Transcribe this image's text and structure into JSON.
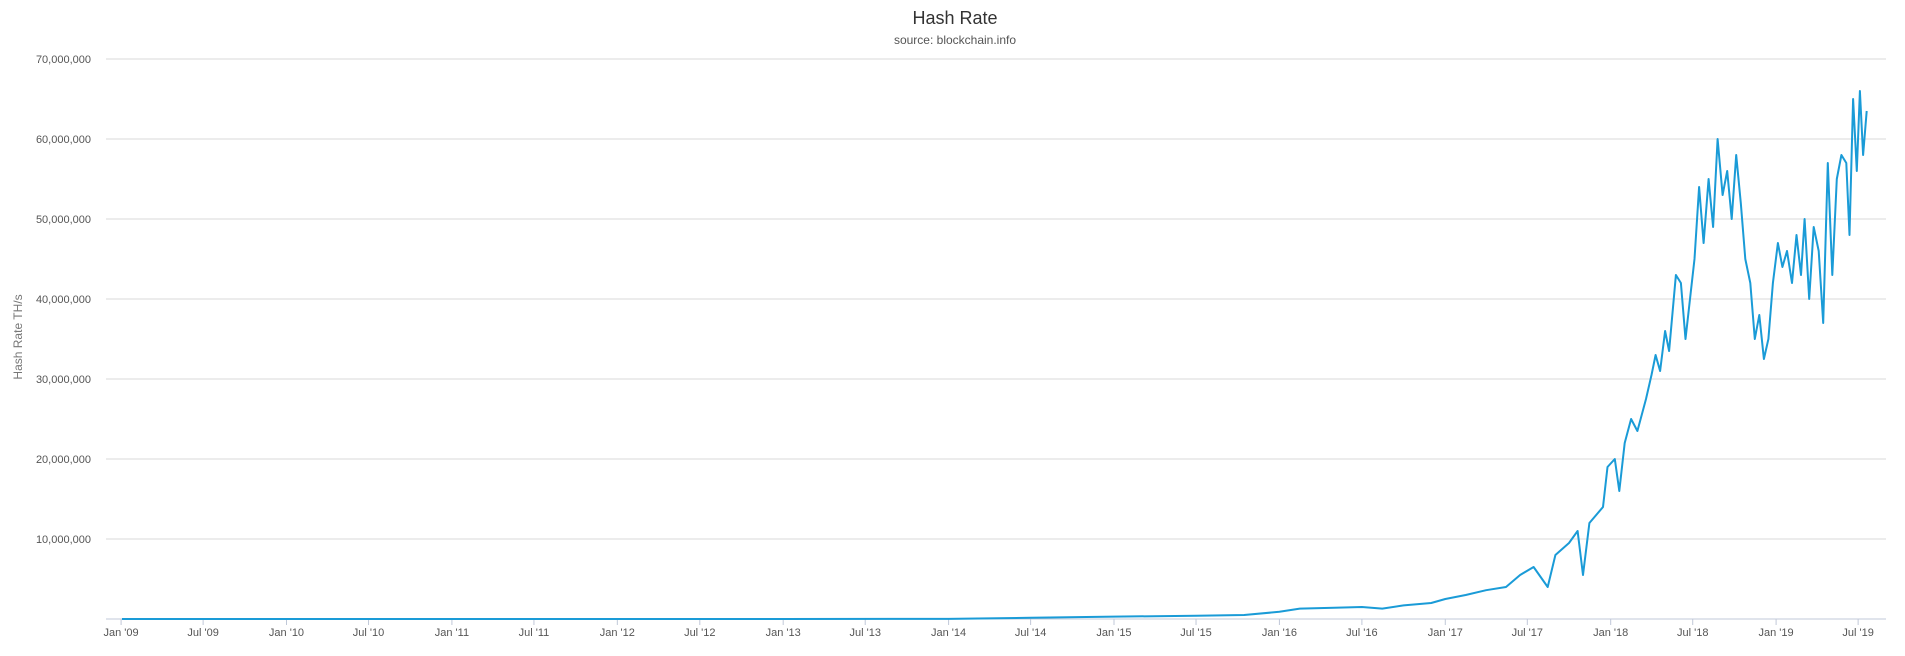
{
  "chart_data": {
    "type": "line",
    "title": "Hash Rate",
    "subtitle": "source: blockchain.info",
    "xlabel": "",
    "ylabel": "Hash Rate TH/s",
    "ylim": [
      0,
      70000000
    ],
    "xlim": [
      "2009-01-03",
      "2019-07-25"
    ],
    "grid": true,
    "legend": "none",
    "y_ticks": [
      {
        "value": 10000000,
        "label": "10,000,000"
      },
      {
        "value": 20000000,
        "label": "20,000,000"
      },
      {
        "value": 30000000,
        "label": "30,000,000"
      },
      {
        "value": 40000000,
        "label": "40,000,000"
      },
      {
        "value": 50000000,
        "label": "50,000,000"
      },
      {
        "value": 60000000,
        "label": "60,000,000"
      },
      {
        "value": 70000000,
        "label": "70,000,000"
      }
    ],
    "x_ticks": [
      {
        "date": "2009-01-01",
        "label": "Jan '09"
      },
      {
        "date": "2009-07-01",
        "label": "Jul '09"
      },
      {
        "date": "2010-01-01",
        "label": "Jan '10"
      },
      {
        "date": "2010-07-01",
        "label": "Jul '10"
      },
      {
        "date": "2011-01-01",
        "label": "Jan '11"
      },
      {
        "date": "2011-07-01",
        "label": "Jul '11"
      },
      {
        "date": "2012-01-01",
        "label": "Jan '12"
      },
      {
        "date": "2012-07-01",
        "label": "Jul '12"
      },
      {
        "date": "2013-01-01",
        "label": "Jan '13"
      },
      {
        "date": "2013-07-01",
        "label": "Jul '13"
      },
      {
        "date": "2014-01-01",
        "label": "Jan '14"
      },
      {
        "date": "2014-07-01",
        "label": "Jul '14"
      },
      {
        "date": "2015-01-01",
        "label": "Jan '15"
      },
      {
        "date": "2015-07-01",
        "label": "Jul '15"
      },
      {
        "date": "2016-01-01",
        "label": "Jan '16"
      },
      {
        "date": "2016-07-01",
        "label": "Jul '16"
      },
      {
        "date": "2017-01-01",
        "label": "Jan '17"
      },
      {
        "date": "2017-07-01",
        "label": "Jul '17"
      },
      {
        "date": "2018-01-01",
        "label": "Jan '18"
      },
      {
        "date": "2018-07-01",
        "label": "Jul '18"
      },
      {
        "date": "2019-01-01",
        "label": "Jan '19"
      },
      {
        "date": "2019-07-01",
        "label": "Jul '19"
      }
    ],
    "series": [
      {
        "color": "#1a9bd7",
        "points": [
          [
            "2009-01-03",
            0
          ],
          [
            "2013-01-01",
            20
          ],
          [
            "2014-01-01",
            15000
          ],
          [
            "2014-07-01",
            150000
          ],
          [
            "2015-01-01",
            300000
          ],
          [
            "2015-07-01",
            400000
          ],
          [
            "2015-10-15",
            500000
          ],
          [
            "2016-01-01",
            900000
          ],
          [
            "2016-02-15",
            1300000
          ],
          [
            "2016-05-01",
            1400000
          ],
          [
            "2016-07-01",
            1500000
          ],
          [
            "2016-08-15",
            1300000
          ],
          [
            "2016-10-01",
            1700000
          ],
          [
            "2016-12-01",
            2000000
          ],
          [
            "2017-01-01",
            2500000
          ],
          [
            "2017-02-15",
            3000000
          ],
          [
            "2017-04-01",
            3600000
          ],
          [
            "2017-05-15",
            4000000
          ],
          [
            "2017-06-15",
            5500000
          ],
          [
            "2017-07-15",
            6500000
          ],
          [
            "2017-08-15",
            4000000
          ],
          [
            "2017-09-01",
            8000000
          ],
          [
            "2017-10-01",
            9500000
          ],
          [
            "2017-10-20",
            11000000
          ],
          [
            "2017-11-01",
            5500000
          ],
          [
            "2017-11-15",
            12000000
          ],
          [
            "2017-12-15",
            14000000
          ],
          [
            "2017-12-25",
            19000000
          ],
          [
            "2018-01-10",
            20000000
          ],
          [
            "2018-01-20",
            16000000
          ],
          [
            "2018-02-01",
            22000000
          ],
          [
            "2018-02-15",
            25000000
          ],
          [
            "2018-03-01",
            23500000
          ],
          [
            "2018-03-20",
            27500000
          ],
          [
            "2018-04-01",
            30500000
          ],
          [
            "2018-04-10",
            33000000
          ],
          [
            "2018-04-20",
            31000000
          ],
          [
            "2018-05-01",
            36000000
          ],
          [
            "2018-05-10",
            33500000
          ],
          [
            "2018-05-25",
            43000000
          ],
          [
            "2018-06-05",
            42000000
          ],
          [
            "2018-06-15",
            35000000
          ],
          [
            "2018-06-25",
            40000000
          ],
          [
            "2018-07-05",
            45000000
          ],
          [
            "2018-07-15",
            54000000
          ],
          [
            "2018-07-25",
            47000000
          ],
          [
            "2018-08-05",
            55000000
          ],
          [
            "2018-08-15",
            49000000
          ],
          [
            "2018-08-25",
            60000000
          ],
          [
            "2018-09-05",
            53000000
          ],
          [
            "2018-09-15",
            56000000
          ],
          [
            "2018-09-25",
            50000000
          ],
          [
            "2018-10-05",
            58000000
          ],
          [
            "2018-10-15",
            52000000
          ],
          [
            "2018-10-25",
            45000000
          ],
          [
            "2018-11-05",
            42000000
          ],
          [
            "2018-11-15",
            35000000
          ],
          [
            "2018-11-25",
            38000000
          ],
          [
            "2018-12-05",
            32500000
          ],
          [
            "2018-12-15",
            35000000
          ],
          [
            "2018-12-25",
            42000000
          ],
          [
            "2019-01-05",
            47000000
          ],
          [
            "2019-01-15",
            44000000
          ],
          [
            "2019-01-25",
            46000000
          ],
          [
            "2019-02-05",
            42000000
          ],
          [
            "2019-02-15",
            48000000
          ],
          [
            "2019-02-25",
            43000000
          ],
          [
            "2019-03-05",
            50000000
          ],
          [
            "2019-03-15",
            40000000
          ],
          [
            "2019-03-25",
            49000000
          ],
          [
            "2019-04-05",
            46000000
          ],
          [
            "2019-04-15",
            37000000
          ],
          [
            "2019-04-25",
            57000000
          ],
          [
            "2019-05-05",
            43000000
          ],
          [
            "2019-05-15",
            55000000
          ],
          [
            "2019-05-25",
            58000000
          ],
          [
            "2019-06-05",
            57000000
          ],
          [
            "2019-06-12",
            48000000
          ],
          [
            "2019-06-20",
            65000000
          ],
          [
            "2019-06-28",
            56000000
          ],
          [
            "2019-07-05",
            66000000
          ],
          [
            "2019-07-12",
            58000000
          ],
          [
            "2019-07-20",
            63500000
          ]
        ]
      }
    ]
  }
}
